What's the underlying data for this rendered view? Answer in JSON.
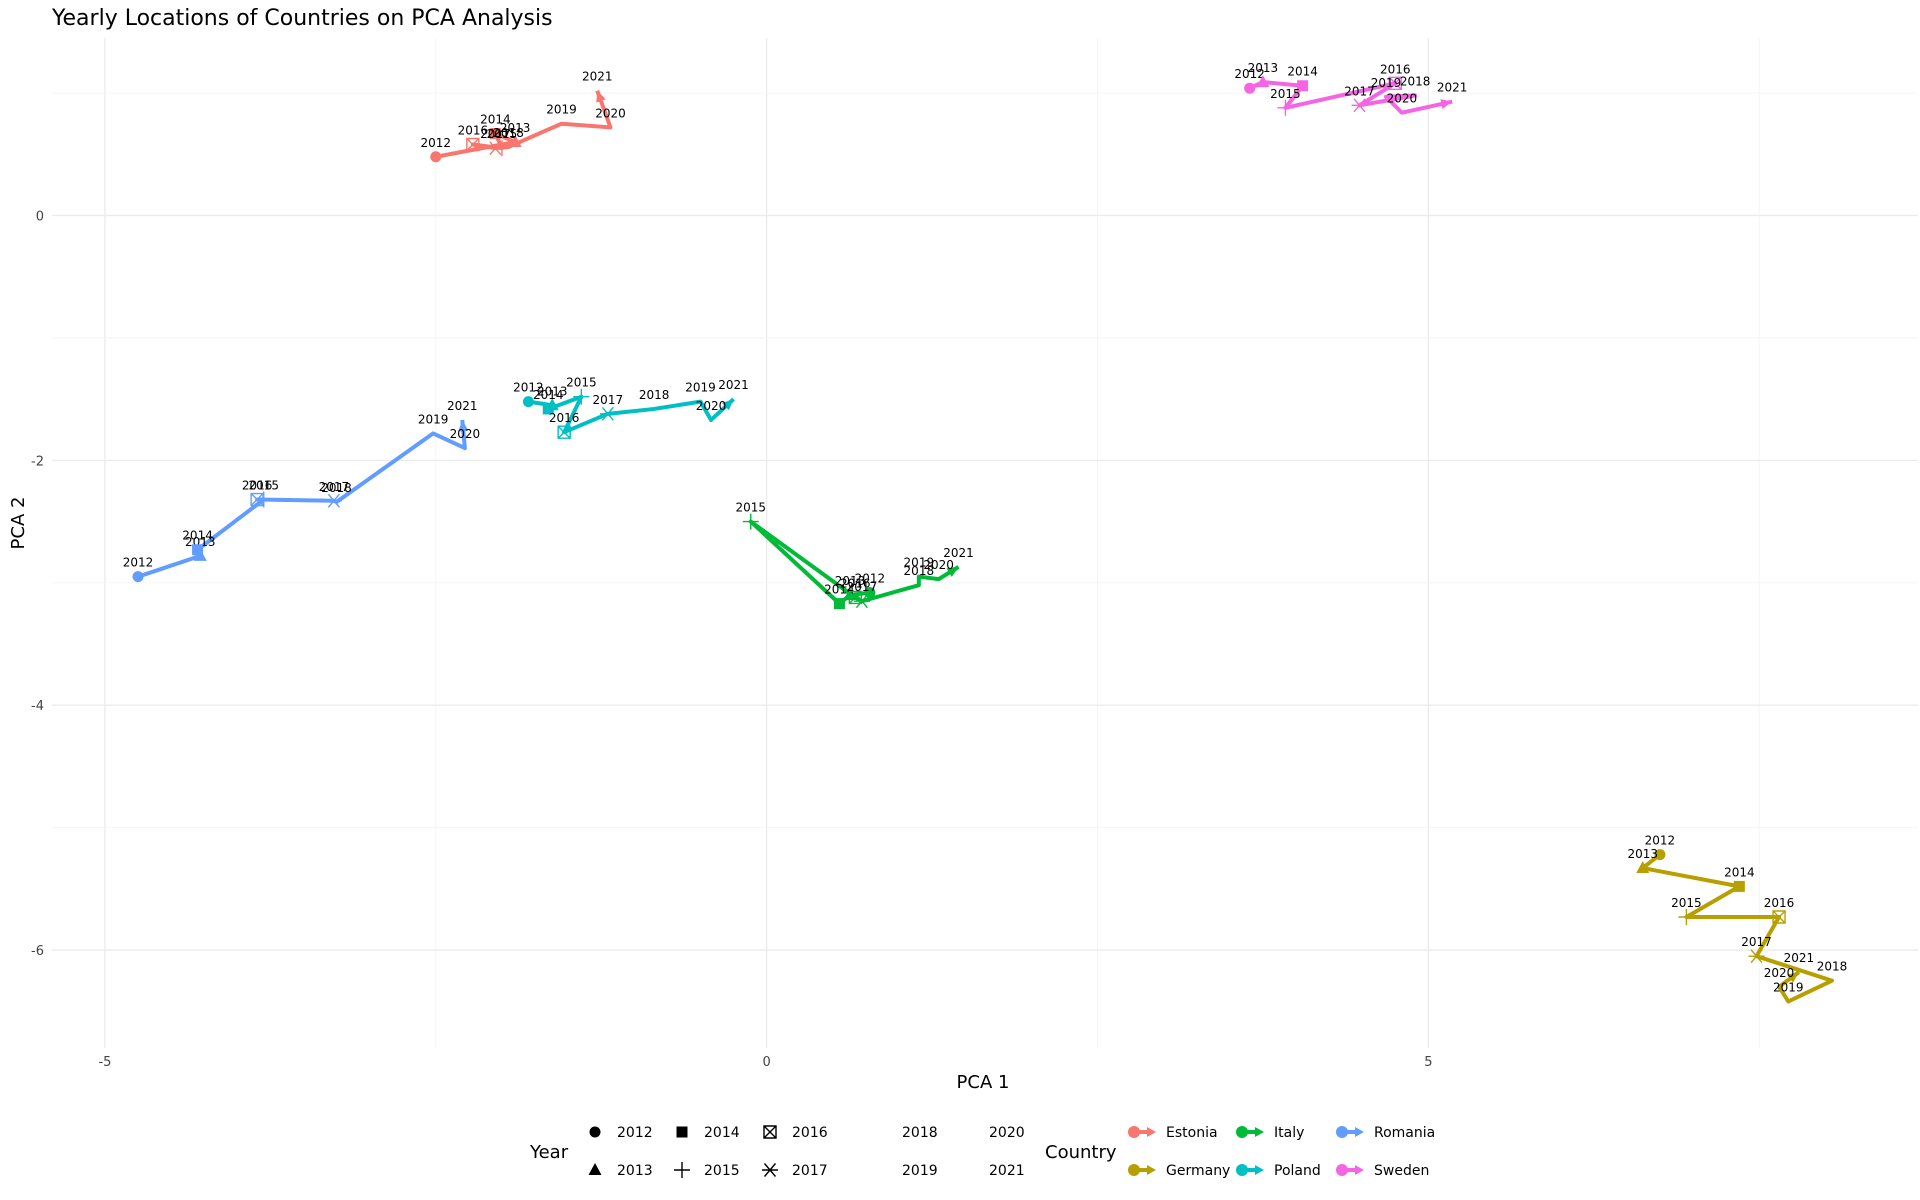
{
  "chart_data": {
    "type": "line",
    "title": "Yearly Locations of Countries on PCA Analysis",
    "xlabel": "PCA 1",
    "ylabel": "PCA 2",
    "xlim": [
      -5.4,
      8.7
    ],
    "ylim": [
      -6.8,
      1.45
    ],
    "xticks": [
      -5,
      0,
      5
    ],
    "yticks": [
      -6,
      -4,
      -2,
      0
    ],
    "grid": true,
    "series": [
      {
        "name": "Estonia",
        "color": "#F8766D",
        "points": [
          {
            "year": "2012",
            "x": -2.5,
            "y": 0.48
          },
          {
            "year": "2013",
            "x": -1.9,
            "y": 0.6
          },
          {
            "year": "2014",
            "x": -2.05,
            "y": 0.67
          },
          {
            "year": "2015",
            "x": -2.0,
            "y": 0.55
          },
          {
            "year": "2016",
            "x": -2.22,
            "y": 0.58
          },
          {
            "year": "2017",
            "x": -2.05,
            "y": 0.55
          },
          {
            "year": "2018",
            "x": -1.95,
            "y": 0.56
          },
          {
            "year": "2019",
            "x": -1.55,
            "y": 0.75
          },
          {
            "year": "2020",
            "x": -1.18,
            "y": 0.72
          },
          {
            "year": "2021",
            "x": -1.28,
            "y": 1.02
          }
        ]
      },
      {
        "name": "Germany",
        "color": "#B79F00",
        "points": [
          {
            "year": "2012",
            "x": 6.75,
            "y": -5.22
          },
          {
            "year": "2013",
            "x": 6.62,
            "y": -5.33
          },
          {
            "year": "2014",
            "x": 7.35,
            "y": -5.48
          },
          {
            "year": "2015",
            "x": 6.95,
            "y": -5.73
          },
          {
            "year": "2016",
            "x": 7.65,
            "y": -5.73
          },
          {
            "year": "2017",
            "x": 7.48,
            "y": -6.05
          },
          {
            "year": "2018",
            "x": 8.05,
            "y": -6.25
          },
          {
            "year": "2019",
            "x": 7.72,
            "y": -6.42
          },
          {
            "year": "2020",
            "x": 7.65,
            "y": -6.3
          },
          {
            "year": "2021",
            "x": 7.8,
            "y": -6.18
          }
        ]
      },
      {
        "name": "Italy",
        "color": "#00BA38",
        "points": [
          {
            "year": "2012",
            "x": 0.78,
            "y": -3.08
          },
          {
            "year": "2013",
            "x": 0.63,
            "y": -3.1
          },
          {
            "year": "2014",
            "x": 0.55,
            "y": -3.17
          },
          {
            "year": "2015",
            "x": -0.12,
            "y": -2.5
          },
          {
            "year": "2016",
            "x": 0.67,
            "y": -3.12
          },
          {
            "year": "2017",
            "x": 0.72,
            "y": -3.15
          },
          {
            "year": "2018",
            "x": 1.15,
            "y": -3.02
          },
          {
            "year": "2019",
            "x": 1.15,
            "y": -2.95
          },
          {
            "year": "2020",
            "x": 1.3,
            "y": -2.97
          },
          {
            "year": "2021",
            "x": 1.45,
            "y": -2.87
          }
        ]
      },
      {
        "name": "Poland",
        "color": "#00BFC4",
        "points": [
          {
            "year": "2012",
            "x": -1.8,
            "y": -1.52
          },
          {
            "year": "2013",
            "x": -1.62,
            "y": -1.55
          },
          {
            "year": "2014",
            "x": -1.65,
            "y": -1.58
          },
          {
            "year": "2015",
            "x": -1.4,
            "y": -1.48
          },
          {
            "year": "2016",
            "x": -1.53,
            "y": -1.77
          },
          {
            "year": "2017",
            "x": -1.2,
            "y": -1.62
          },
          {
            "year": "2018",
            "x": -0.85,
            "y": -1.58
          },
          {
            "year": "2019",
            "x": -0.5,
            "y": -1.52
          },
          {
            "year": "2020",
            "x": -0.42,
            "y": -1.67
          },
          {
            "year": "2021",
            "x": -0.25,
            "y": -1.5
          }
        ]
      },
      {
        "name": "Romania",
        "color": "#619CFF",
        "points": [
          {
            "year": "2012",
            "x": -4.75,
            "y": -2.95
          },
          {
            "year": "2013",
            "x": -4.28,
            "y": -2.78
          },
          {
            "year": "2014",
            "x": -4.3,
            "y": -2.73
          },
          {
            "year": "2015",
            "x": -3.8,
            "y": -2.32
          },
          {
            "year": "2016",
            "x": -3.85,
            "y": -2.32
          },
          {
            "year": "2017",
            "x": -3.27,
            "y": -2.33
          },
          {
            "year": "2018",
            "x": -3.25,
            "y": -2.34
          },
          {
            "year": "2019",
            "x": -2.52,
            "y": -1.78
          },
          {
            "year": "2020",
            "x": -2.28,
            "y": -1.9
          },
          {
            "year": "2021",
            "x": -2.3,
            "y": -1.67
          }
        ]
      },
      {
        "name": "Sweden",
        "color": "#F564E3",
        "points": [
          {
            "year": "2012",
            "x": 3.65,
            "y": 1.04
          },
          {
            "year": "2013",
            "x": 3.75,
            "y": 1.09
          },
          {
            "year": "2014",
            "x": 4.05,
            "y": 1.06
          },
          {
            "year": "2015",
            "x": 3.92,
            "y": 0.88
          },
          {
            "year": "2016",
            "x": 4.75,
            "y": 1.08
          },
          {
            "year": "2017",
            "x": 4.48,
            "y": 0.9
          },
          {
            "year": "2018",
            "x": 4.9,
            "y": 0.98
          },
          {
            "year": "2019",
            "x": 4.68,
            "y": 0.97
          },
          {
            "year": "2020",
            "x": 4.8,
            "y": 0.84
          },
          {
            "year": "2021",
            "x": 5.18,
            "y": 0.93
          }
        ]
      }
    ],
    "legend_year": {
      "title": "Year",
      "entries": [
        "2012",
        "2013",
        "2014",
        "2015",
        "2016",
        "2017",
        "2018",
        "2019",
        "2020",
        "2021"
      ],
      "shapes": [
        "circle",
        "triangle",
        "square",
        "plus",
        "square-x",
        "asterisk",
        "none",
        "none",
        "none",
        "none"
      ]
    },
    "legend_country": {
      "title": "Country",
      "entries": [
        "Estonia",
        "Germany",
        "Italy",
        "Poland",
        "Romania",
        "Sweden"
      ]
    },
    "legend_placement": "bottom"
  }
}
